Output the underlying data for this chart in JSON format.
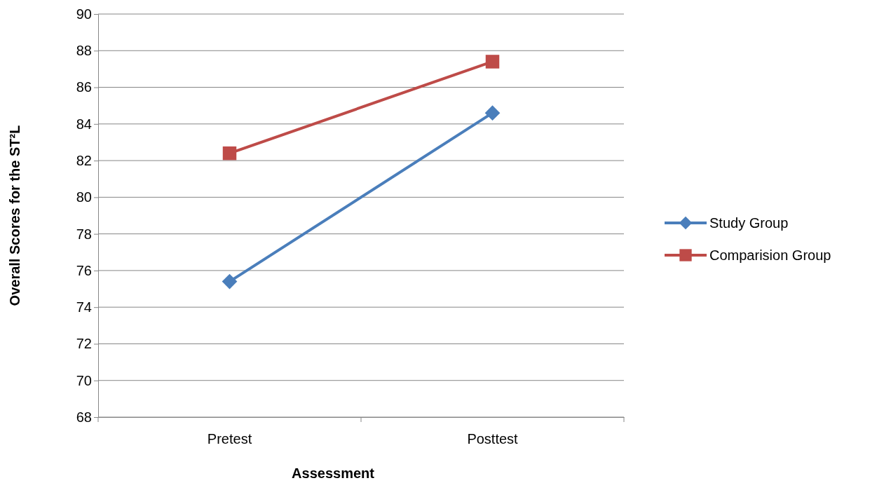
{
  "chart_data": {
    "type": "line",
    "xlabel": "Assessment",
    "ylabel": "Overall Scores for the  ST²L",
    "categories": [
      "Pretest",
      "Posttest"
    ],
    "series": [
      {
        "name": "Study Group",
        "color": "#4a7ebb",
        "marker": "diamond",
        "values": [
          75.4,
          84.6
        ]
      },
      {
        "name": "Comparision Group",
        "color": "#be4b48",
        "marker": "square",
        "values": [
          82.4,
          87.4
        ]
      }
    ],
    "ylim": [
      68,
      90
    ],
    "yticks": [
      68,
      70,
      72,
      74,
      76,
      78,
      80,
      82,
      84,
      86,
      88,
      90
    ],
    "grid": "y",
    "legend": "right",
    "line_style": "solid"
  }
}
